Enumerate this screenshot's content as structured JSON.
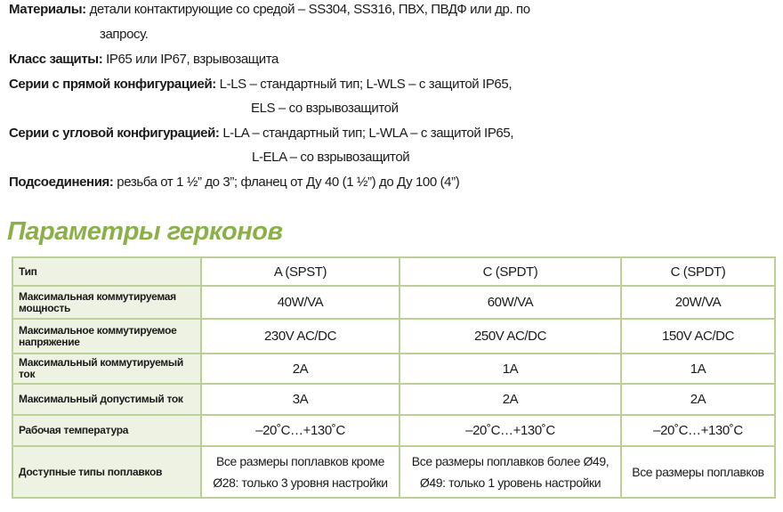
{
  "specs": [
    {
      "label": "Материалы:",
      "value": "детали контактирующие со средой – SS304, SS316, ПВХ, ПВДФ или др. по",
      "cont": "запросу."
    },
    {
      "label": "Класс защиты:",
      "value": "IP65 или IP67, взрывозащита"
    },
    {
      "label": "Серии с прямой конфигурацией:",
      "value": "L-LS – стандартный тип; L-WLS – с защитой IP65,",
      "cont": "ELS – со взрывозащитой"
    },
    {
      "label": "Серии с угловой конфигурацией:",
      "value": "L-LA – стандартный тип; L-WLA – с защитой IP65,",
      "cont": "L-ELA – со взрывозащитой"
    },
    {
      "label": "Подсоединения:",
      "value": "резьба от 1 ½” до 3”; фланец от Ду 40 (1 ½”) до Ду 100 (4”)"
    }
  ],
  "section_title": "Параметры герконов",
  "accent_color": "#8bb04a",
  "table": {
    "rows": [
      [
        "Тип",
        "A (SPST)",
        "C (SPDT)",
        "C (SPDT)"
      ],
      [
        "Максимальная коммутируемая мощность",
        "40W/VA",
        "60W/VA",
        "20W/VA"
      ],
      [
        "Максимальное коммутируемое напряжение",
        "230V AC/DC",
        "250V AC/DC",
        "150V AC/DC"
      ],
      [
        "Максимальный коммутируемый ток",
        "2A",
        "1A",
        "1A"
      ],
      [
        "Максимальный допустимый ток",
        "3A",
        "2A",
        "2A"
      ],
      [
        "Рабочая температура",
        "–20˚C…+130˚C",
        "–20˚C…+130˚C",
        "–20˚C…+130˚C"
      ],
      [
        "Доступные типы поплавков",
        "Все размеры поплавков кроме Ø28: только 3 уровня настройки",
        "Все размеры поплавков более Ø49, Ø49: только 1 уровень настройки",
        "Все размеры поплавков"
      ]
    ]
  }
}
